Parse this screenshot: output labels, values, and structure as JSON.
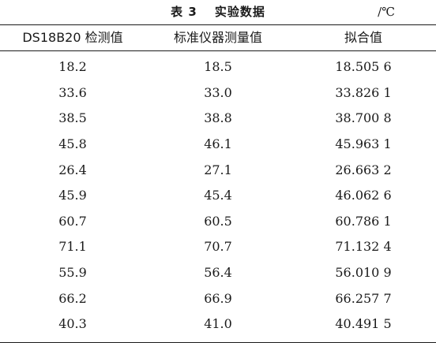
{
  "caption": {
    "label": "表 3",
    "title": "实验数据",
    "unit": "/℃"
  },
  "table": {
    "headers": [
      "DS18B20 检测值",
      "标准仪器测量值",
      "拟合值"
    ],
    "rows": [
      [
        "18.2",
        "18.5",
        "18.505 6"
      ],
      [
        "33.6",
        "33.0",
        "33.826 1"
      ],
      [
        "38.5",
        "38.8",
        "38.700 8"
      ],
      [
        "45.8",
        "46.1",
        "45.963 1"
      ],
      [
        "26.4",
        "27.1",
        "26.663 2"
      ],
      [
        "45.9",
        "45.4",
        "46.062 6"
      ],
      [
        "60.7",
        "60.5",
        "60.786 1"
      ],
      [
        "71.1",
        "70.7",
        "71.132 4"
      ],
      [
        "55.9",
        "56.4",
        "56.010 9"
      ],
      [
        "66.2",
        "66.9",
        "66.257 7"
      ],
      [
        "40.3",
        "41.0",
        "40.491 5"
      ]
    ]
  }
}
